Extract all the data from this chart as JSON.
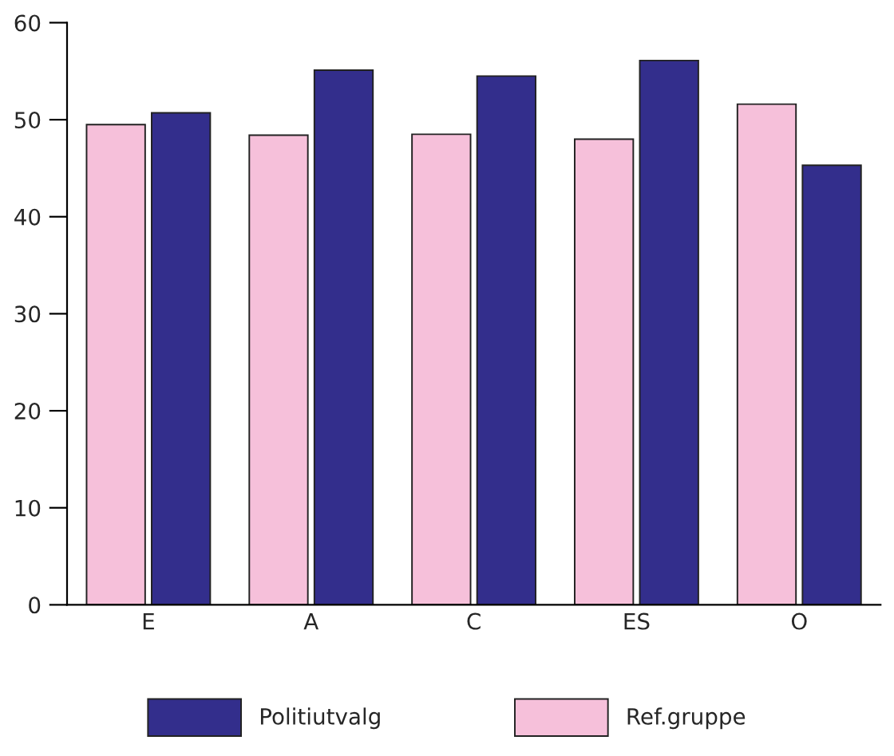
{
  "chart_data": {
    "type": "bar",
    "categories": [
      "E",
      "A",
      "C",
      "ES",
      "O"
    ],
    "series": [
      {
        "name": "Ref.gruppe",
        "color": "#f6c0da",
        "values": [
          49.5,
          48.4,
          48.5,
          48.0,
          51.6
        ]
      },
      {
        "name": "Politiutvalg",
        "color": "#332e8c",
        "values": [
          50.7,
          55.1,
          54.5,
          56.1,
          45.3
        ]
      }
    ],
    "ylim": [
      0,
      60
    ],
    "yticks": [
      0,
      10,
      20,
      30,
      40,
      50,
      60
    ],
    "grid": false,
    "legend": "bottom"
  }
}
